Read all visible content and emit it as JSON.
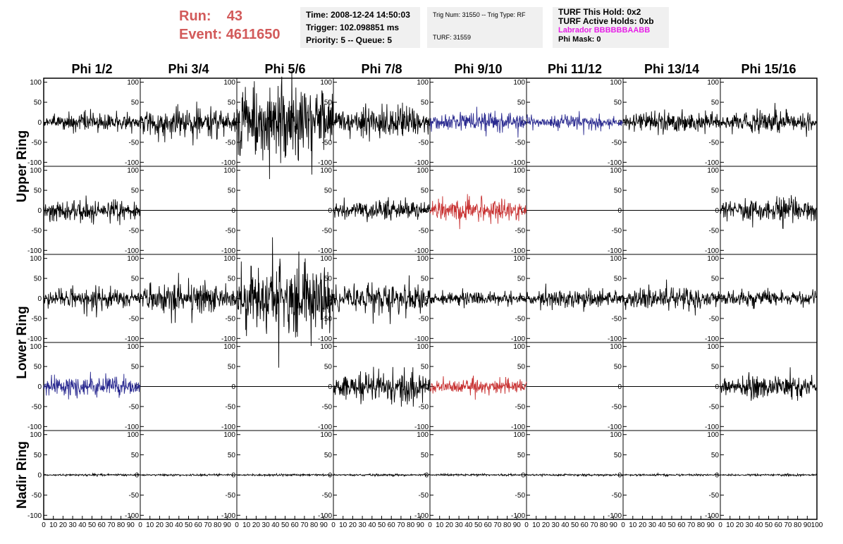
{
  "header": {
    "run_label": "Run:",
    "run_value": "43",
    "event_label": "Event:",
    "event_value": "4611650",
    "time_line": "Time: 2008-12-24 14:50:03",
    "trigger_line": "Trigger: 102.098851 ms",
    "priority_line": "Priority: 5 -- Queue: 5",
    "trig_line": "Trig Num: 31550 -- Trig Type: RF",
    "turf_line": "TURF: 31559",
    "turf_hold": "TURF This Hold: 0x2",
    "turf_active": "TURF Active Holds: 0xb",
    "labrador": "Labrador BBBBBBAABB",
    "phi_mask": "Phi Mask: 0"
  },
  "colors": {
    "run_text": "#d25a5a",
    "labrador_text": "#e61ee6",
    "waveform_default": "#000000",
    "waveform_blue": "#2a2a90",
    "waveform_red": "#c83232"
  },
  "chart_data": {
    "type": "line",
    "columns": [
      "Phi 1/2",
      "Phi 3/4",
      "Phi 5/6",
      "Phi 7/8",
      "Phi 9/10",
      "Phi 11/12",
      "Phi 13/14",
      "Phi 15/16"
    ],
    "rows": [
      "Upper Ring",
      "Lower Ring",
      "Nadir Ring"
    ],
    "xlim": [
      0,
      100
    ],
    "ylim": [
      -110,
      110
    ],
    "x_ticks": [
      "0",
      "10",
      "20",
      "30",
      "40",
      "50",
      "60",
      "70",
      "80",
      "90",
      "100"
    ],
    "y_ticks": [
      "100",
      "50",
      "0",
      "-50",
      "-100"
    ],
    "panels": [
      {
        "row": 0,
        "col": 0,
        "amplitude": 18,
        "color": "black"
      },
      {
        "row": 0,
        "col": 1,
        "amplitude": 30,
        "color": "black"
      },
      {
        "row": 0,
        "col": 2,
        "amplitude": 80,
        "color": "black"
      },
      {
        "row": 0,
        "col": 3,
        "amplitude": 30,
        "color": "black"
      },
      {
        "row": 0,
        "col": 4,
        "amplitude": 22,
        "color": "blue"
      },
      {
        "row": 0,
        "col": 5,
        "amplitude": 14,
        "color": "blue"
      },
      {
        "row": 0,
        "col": 6,
        "amplitude": 22,
        "color": "black"
      },
      {
        "row": 0,
        "col": 7,
        "amplitude": 22,
        "color": "black"
      },
      {
        "row": 1,
        "col": 0,
        "amplitude": 22,
        "color": "black"
      },
      {
        "row": 1,
        "col": 1,
        "amplitude": 0,
        "color": "black"
      },
      {
        "row": 1,
        "col": 2,
        "amplitude": 0,
        "color": "black"
      },
      {
        "row": 1,
        "col": 3,
        "amplitude": 20,
        "color": "black"
      },
      {
        "row": 1,
        "col": 4,
        "amplitude": 25,
        "color": "red"
      },
      {
        "row": 1,
        "col": 5,
        "amplitude": 0,
        "color": "black"
      },
      {
        "row": 1,
        "col": 6,
        "amplitude": 0,
        "color": "black"
      },
      {
        "row": 1,
        "col": 7,
        "amplitude": 25,
        "color": "black"
      },
      {
        "row": 2,
        "col": 0,
        "amplitude": 20,
        "color": "black"
      },
      {
        "row": 2,
        "col": 1,
        "amplitude": 32,
        "color": "black"
      },
      {
        "row": 2,
        "col": 2,
        "amplitude": 75,
        "color": "black"
      },
      {
        "row": 2,
        "col": 3,
        "amplitude": 32,
        "color": "black"
      },
      {
        "row": 2,
        "col": 4,
        "amplitude": 14,
        "color": "black"
      },
      {
        "row": 2,
        "col": 5,
        "amplitude": 18,
        "color": "black"
      },
      {
        "row": 2,
        "col": 6,
        "amplitude": 22,
        "color": "black"
      },
      {
        "row": 2,
        "col": 7,
        "amplitude": 16,
        "color": "black"
      },
      {
        "row": 3,
        "col": 0,
        "amplitude": 22,
        "color": "blue"
      },
      {
        "row": 3,
        "col": 1,
        "amplitude": 0,
        "color": "black"
      },
      {
        "row": 3,
        "col": 2,
        "amplitude": 0,
        "color": "black"
      },
      {
        "row": 3,
        "col": 3,
        "amplitude": 30,
        "color": "black"
      },
      {
        "row": 3,
        "col": 4,
        "amplitude": 16,
        "color": "red"
      },
      {
        "row": 3,
        "col": 5,
        "amplitude": 0,
        "color": "black"
      },
      {
        "row": 3,
        "col": 6,
        "amplitude": 0,
        "color": "black"
      },
      {
        "row": 3,
        "col": 7,
        "amplitude": 22,
        "color": "black"
      },
      {
        "row": 4,
        "col": 0,
        "amplitude": 2,
        "color": "black"
      },
      {
        "row": 4,
        "col": 1,
        "amplitude": 2,
        "color": "black"
      },
      {
        "row": 4,
        "col": 2,
        "amplitude": 2,
        "color": "black"
      },
      {
        "row": 4,
        "col": 3,
        "amplitude": 2,
        "color": "black"
      },
      {
        "row": 4,
        "col": 4,
        "amplitude": 2,
        "color": "black"
      },
      {
        "row": 4,
        "col": 5,
        "amplitude": 2,
        "color": "black"
      },
      {
        "row": 4,
        "col": 6,
        "amplitude": 2,
        "color": "black"
      },
      {
        "row": 4,
        "col": 7,
        "amplitude": 2,
        "color": "black"
      }
    ]
  }
}
